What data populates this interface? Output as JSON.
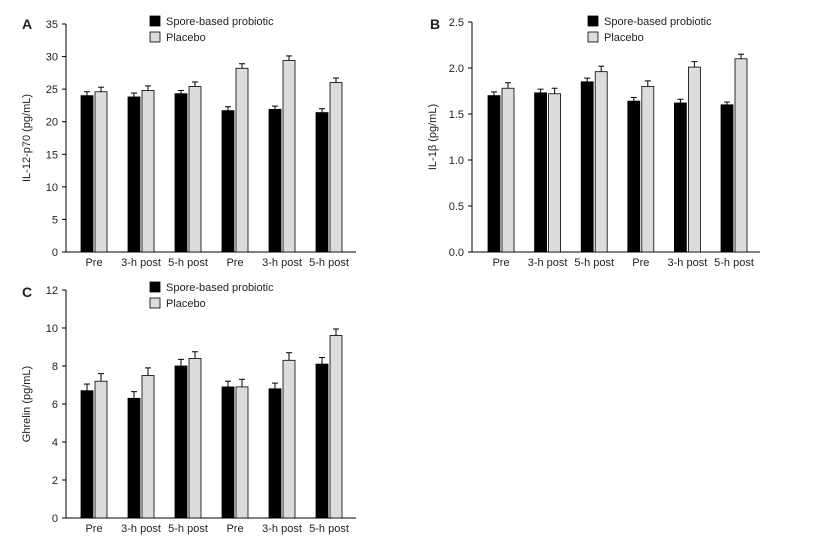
{
  "chart_data": [
    {
      "type": "bar",
      "panel_label": "A",
      "ylabel": "IL-12-p70 (pg/mL)",
      "ylim": [
        0,
        35
      ],
      "yticks": [
        0,
        5,
        10,
        15,
        20,
        25,
        30,
        35
      ],
      "categories": [
        "Pre",
        "3-h post",
        "5-h post",
        "Pre",
        "3-h post",
        "5-h post"
      ],
      "series": [
        {
          "name": "Spore-based probiotic",
          "color": "#000000",
          "values": [
            24.0,
            23.8,
            24.3,
            21.7,
            21.9,
            21.4
          ],
          "errors": [
            0.6,
            0.6,
            0.5,
            0.6,
            0.5,
            0.6
          ]
        },
        {
          "name": "Placebo",
          "color": "#dcdcdc",
          "values": [
            24.6,
            24.8,
            25.4,
            28.2,
            29.4,
            26.0
          ],
          "errors": [
            0.7,
            0.7,
            0.7,
            0.7,
            0.7,
            0.7
          ]
        }
      ],
      "legend": "top-center",
      "grid": false
    },
    {
      "type": "bar",
      "panel_label": "B",
      "ylabel": "IL-1β (pg/mL)",
      "ylim": [
        0,
        2.5
      ],
      "yticks": [
        "0.0",
        "0.5",
        "1.0",
        "1.5",
        "2.0",
        "2.5"
      ],
      "categories": [
        "Pre",
        "3-h post",
        "5-h post",
        "Pre",
        "3-h post",
        "5-h post"
      ],
      "series": [
        {
          "name": "Spore-based probiotic",
          "color": "#000000",
          "values": [
            1.7,
            1.73,
            1.85,
            1.64,
            1.62,
            1.6
          ],
          "errors": [
            0.04,
            0.04,
            0.04,
            0.04,
            0.04,
            0.03
          ]
        },
        {
          "name": "Placebo",
          "color": "#dcdcdc",
          "values": [
            1.78,
            1.72,
            1.96,
            1.8,
            2.01,
            2.1
          ],
          "errors": [
            0.06,
            0.06,
            0.06,
            0.06,
            0.06,
            0.05
          ]
        }
      ],
      "legend": "top-center",
      "grid": false
    },
    {
      "type": "bar",
      "panel_label": "C",
      "ylabel": "Ghrelin (pg/mL)",
      "ylim": [
        0,
        12
      ],
      "yticks": [
        0,
        2,
        4,
        6,
        8,
        10,
        12
      ],
      "categories": [
        "Pre",
        "3-h post",
        "5-h post",
        "Pre",
        "3-h post",
        "5-h post"
      ],
      "series": [
        {
          "name": "Spore-based probiotic",
          "color": "#000000",
          "values": [
            6.7,
            6.3,
            8.0,
            6.9,
            6.8,
            8.1
          ],
          "errors": [
            0.35,
            0.35,
            0.35,
            0.3,
            0.3,
            0.35
          ]
        },
        {
          "name": "Placebo",
          "color": "#dcdcdc",
          "values": [
            7.2,
            7.5,
            8.4,
            6.9,
            8.3,
            9.6
          ],
          "errors": [
            0.4,
            0.4,
            0.35,
            0.4,
            0.4,
            0.35
          ]
        }
      ],
      "legend": "top-center",
      "grid": false
    }
  ]
}
